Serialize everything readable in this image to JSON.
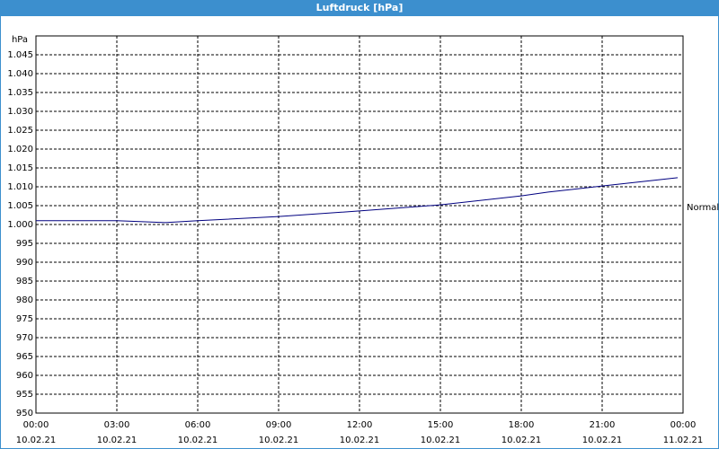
{
  "chart_data": {
    "type": "line",
    "title": "Luftdruck [hPa]",
    "y_unit": "hPa",
    "x": [
      0,
      3,
      4.8,
      6,
      9,
      12,
      15,
      18,
      19,
      21,
      23.8
    ],
    "series": [
      {
        "name": "Luftdruck",
        "color": "#000080",
        "values": [
          1001,
          1001,
          1000.5,
          1001,
          1002.1,
          1003.6,
          1005.2,
          1007.6,
          1008.6,
          1010.2,
          1012.4
        ]
      }
    ],
    "xlim": [
      0,
      24
    ],
    "xticks": [
      {
        "value": 0,
        "label": "00:00"
      },
      {
        "value": 3,
        "label": "03:00"
      },
      {
        "value": 6,
        "label": "06:00"
      },
      {
        "value": 9,
        "label": "09:00"
      },
      {
        "value": 12,
        "label": "12:00"
      },
      {
        "value": 15,
        "label": "15:00"
      },
      {
        "value": 18,
        "label": "18:00"
      },
      {
        "value": 21,
        "label": "21:00"
      },
      {
        "value": 24,
        "label": "00:00"
      }
    ],
    "xtick_dates": [
      "10.02.21",
      "10.02.21",
      "10.02.21",
      "10.02.21",
      "10.02.21",
      "10.02.21",
      "10.02.21",
      "10.02.21",
      "11.02.21"
    ],
    "ylim": [
      950,
      1050
    ],
    "yticks": [
      950,
      955,
      960,
      965,
      970,
      975,
      980,
      985,
      990,
      995,
      {
        "value": 1000,
        "label": "1.000"
      },
      {
        "value": 1005,
        "label": "1.005"
      },
      {
        "value": 1010,
        "label": "1.010"
      },
      {
        "value": 1015,
        "label": "1.015"
      },
      {
        "value": 1020,
        "label": "1.020"
      },
      {
        "value": 1025,
        "label": "1.025"
      },
      {
        "value": 1030,
        "label": "1.030"
      },
      {
        "value": 1035,
        "label": "1.035"
      },
      {
        "value": 1040,
        "label": "1.040"
      },
      {
        "value": 1045,
        "label": "1.045"
      }
    ],
    "annotation": {
      "text": "Normal",
      "y": 1004.5
    },
    "grid": true
  }
}
